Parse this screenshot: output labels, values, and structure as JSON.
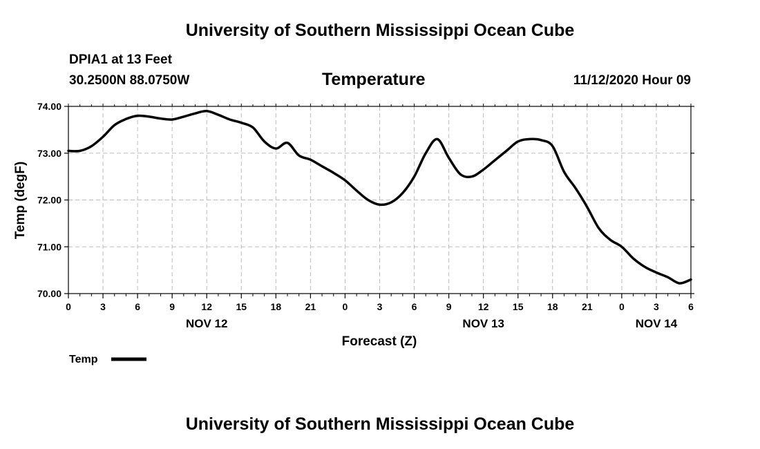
{
  "header": {
    "title": "University of Southern Mississippi Ocean Cube",
    "station": "DPIA1 at 13 Feet",
    "coords": "30.2500N 88.0750W",
    "timestamp": "11/12/2020 Hour 09"
  },
  "footer": {
    "title": "University of Southern Mississippi Ocean Cube"
  },
  "colors": {
    "line": "#000000",
    "grid": "#bbbbbb"
  },
  "chart_data": {
    "type": "line",
    "title": "Temperature",
    "xlabel": "Forecast (Z)",
    "ylabel": "Temp (degF)",
    "xlim": [
      0,
      54
    ],
    "ylim": [
      70,
      74
    ],
    "x_tick_labels": [
      "0",
      "3",
      "6",
      "9",
      "12",
      "15",
      "18",
      "21",
      "0",
      "3",
      "6",
      "9",
      "12",
      "15",
      "18",
      "21",
      "0",
      "3",
      "6"
    ],
    "y_tick_labels": [
      "70.00",
      "71.00",
      "72.00",
      "73.00",
      "74.00"
    ],
    "date_labels": [
      {
        "hour": 12,
        "label": "NOV 12"
      },
      {
        "hour": 36,
        "label": "NOV 13"
      },
      {
        "hour": 51,
        "label": "NOV 14"
      }
    ],
    "legend": {
      "label": "Temp",
      "position": "bottom-left"
    },
    "grid": true,
    "series": [
      {
        "name": "Temp",
        "x": [
          0,
          1,
          2,
          3,
          4,
          5,
          6,
          7,
          8,
          9,
          10,
          11,
          12,
          13,
          14,
          15,
          16,
          17,
          18,
          19,
          20,
          21,
          22,
          23,
          24,
          25,
          26,
          27,
          28,
          29,
          30,
          31,
          32,
          33,
          34,
          35,
          36,
          37,
          38,
          39,
          40,
          41,
          42,
          43,
          44,
          45,
          46,
          47,
          48,
          49,
          50,
          51,
          52,
          53,
          54
        ],
        "values": [
          73.05,
          73.05,
          73.15,
          73.35,
          73.6,
          73.73,
          73.8,
          73.78,
          73.74,
          73.72,
          73.78,
          73.85,
          73.9,
          73.82,
          73.72,
          73.65,
          73.55,
          73.25,
          73.1,
          73.22,
          72.95,
          72.86,
          72.72,
          72.58,
          72.42,
          72.2,
          72.0,
          71.9,
          71.95,
          72.15,
          72.5,
          73.0,
          73.3,
          72.9,
          72.55,
          72.5,
          72.65,
          72.85,
          73.05,
          73.25,
          73.3,
          73.28,
          73.15,
          72.6,
          72.25,
          71.85,
          71.4,
          71.15,
          71.0,
          70.75,
          70.57,
          70.45,
          70.35,
          70.22,
          70.3
        ]
      }
    ]
  }
}
